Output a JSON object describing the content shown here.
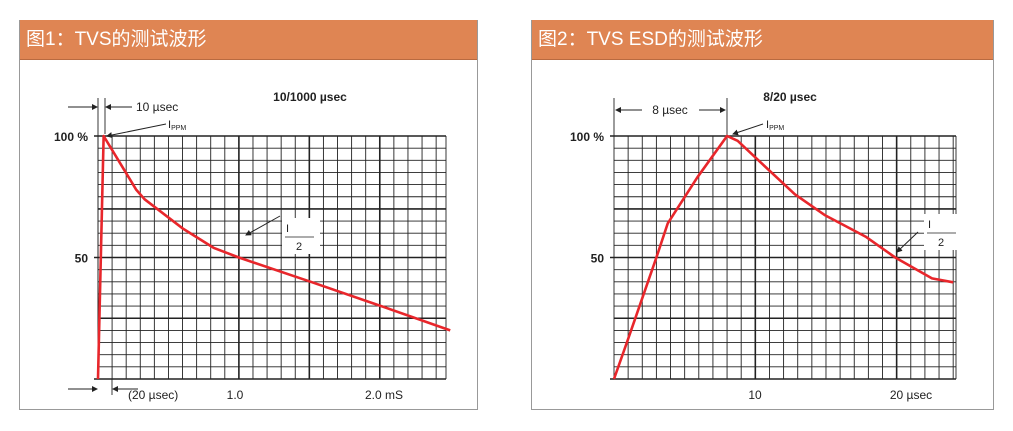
{
  "chart_data": [
    {
      "type": "line",
      "header": "图1：TVS的测试波形",
      "title": "10/1000 µsec",
      "y_ticks": [
        "100 %",
        "50"
      ],
      "x_tick_labels": [
        "(20 µsec)",
        "1.0",
        "2.0 mS"
      ],
      "annotations": {
        "rise": "10 µsec",
        "peak": "I",
        "peak_sub": "PPM",
        "half_num": "I",
        "half_sub": "PPM",
        "half_den": "2"
      },
      "xlim": [
        0,
        2.47
      ],
      "ylim": [
        0,
        100
      ],
      "x_unit": "ms",
      "grid": true,
      "line_color": "#E8262B",
      "x": [
        0,
        0.04,
        0.27,
        0.33,
        0.6,
        0.82,
        1.0,
        1.51,
        2.01,
        2.5
      ],
      "y": [
        0,
        100,
        78,
        74,
        62,
        54,
        50,
        40,
        30,
        20
      ]
    },
    {
      "type": "line",
      "header": "图2：TVS ESD的测试波形",
      "title": "8/20 µsec",
      "y_ticks": [
        "100 %",
        "50"
      ],
      "x_tick_labels": [
        "10",
        "20 µsec"
      ],
      "annotations": {
        "rise": "8 µsec",
        "peak": "I",
        "peak_sub": "PPM",
        "half_num": "I",
        "half_sub": "PPM",
        "half_den": "2"
      },
      "xlim": [
        0,
        24.2
      ],
      "ylim": [
        0,
        100
      ],
      "x_unit": "µsec",
      "grid": true,
      "line_color": "#E8262B",
      "x": [
        0,
        0.97,
        3.0,
        3.8,
        5.9,
        8.0,
        8.75,
        10.4,
        12.8,
        14.9,
        17.8,
        19.9,
        22.5,
        24.0
      ],
      "y": [
        0,
        16,
        50,
        64,
        83,
        100,
        98,
        89,
        76,
        67.5,
        58.6,
        50,
        41.4,
        39.8
      ]
    }
  ]
}
